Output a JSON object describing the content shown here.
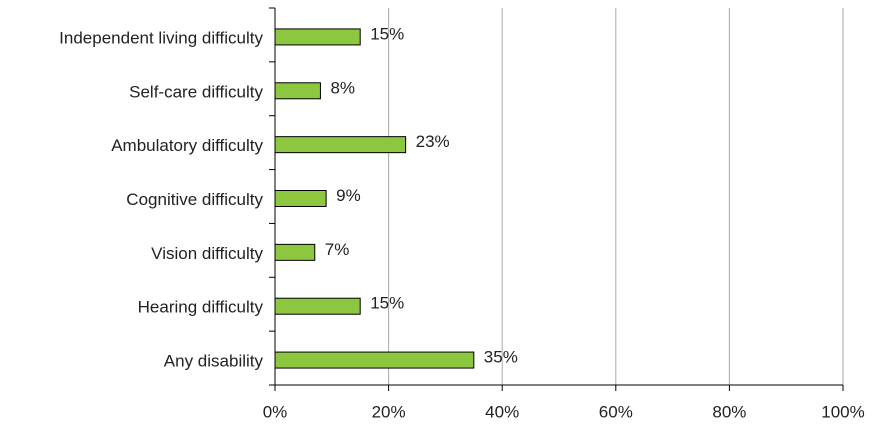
{
  "chart_data": {
    "type": "hbar",
    "categories": [
      "Independent living difficulty",
      "Self-care difficulty",
      "Ambulatory difficulty",
      "Cognitive difficulty",
      "Vision difficulty",
      "Hearing difficulty",
      "Any disability"
    ],
    "values": [
      15,
      8,
      23,
      9,
      7,
      15,
      35
    ],
    "value_labels": [
      "15%",
      "8%",
      "23%",
      "9%",
      "7%",
      "15%",
      "35%"
    ],
    "color": "#8dc63f",
    "xlim": [
      0,
      100
    ],
    "xticks": [
      {
        "value": 0,
        "label": "0%"
      },
      {
        "value": 20,
        "label": "20%"
      },
      {
        "value": 40,
        "label": "40%"
      },
      {
        "value": 60,
        "label": "60%"
      },
      {
        "value": 80,
        "label": "80%"
      },
      {
        "value": 100,
        "label": "100%"
      }
    ],
    "grid": true
  }
}
